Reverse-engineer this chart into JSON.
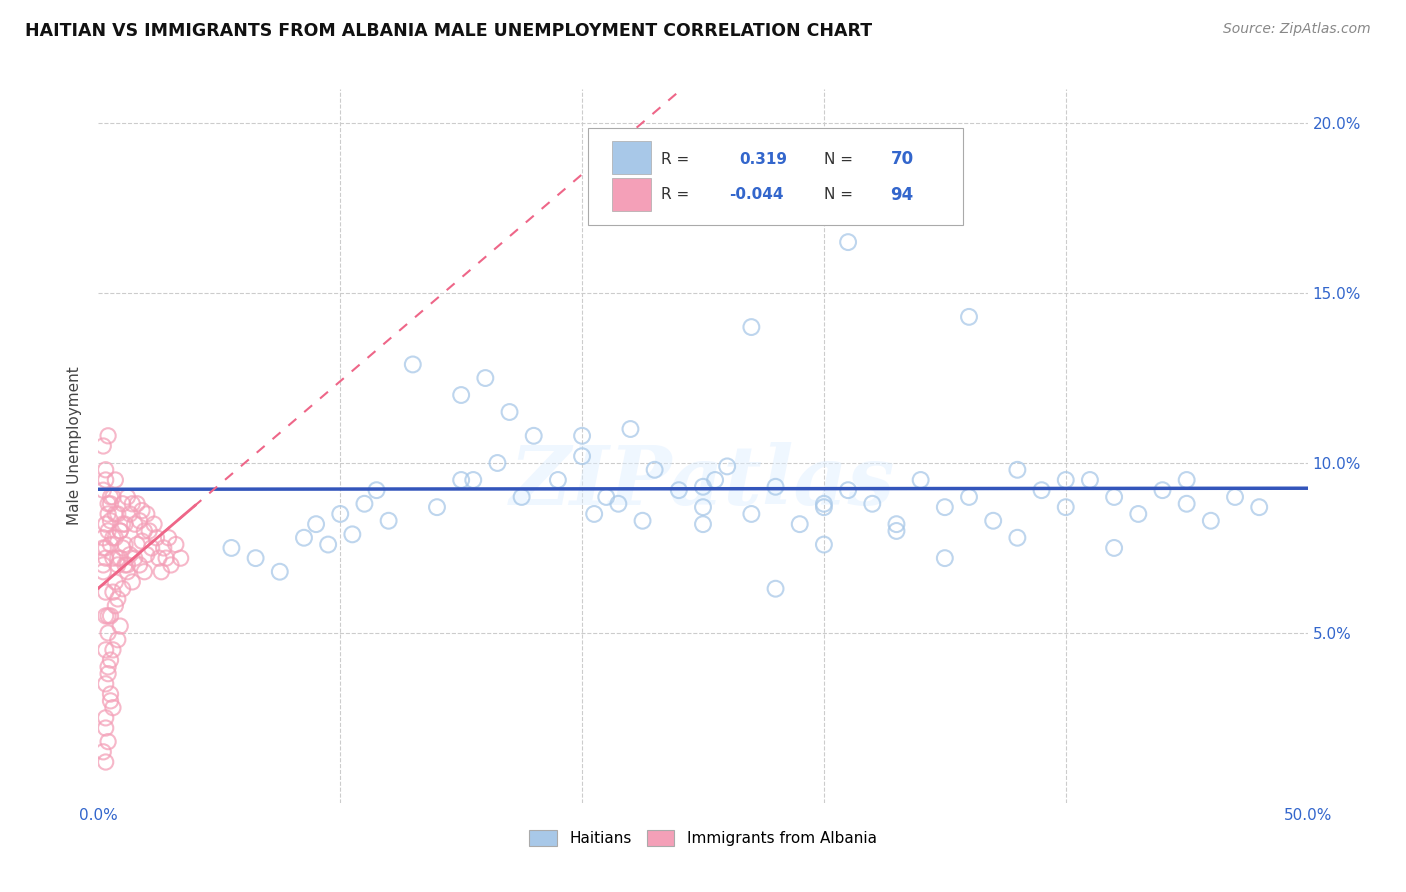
{
  "title": "HAITIAN VS IMMIGRANTS FROM ALBANIA MALE UNEMPLOYMENT CORRELATION CHART",
  "source": "Source: ZipAtlas.com",
  "ylabel": "Male Unemployment",
  "watermark": "ZIPatlas",
  "xlim": [
    0.0,
    0.5
  ],
  "ylim": [
    0.0,
    0.21
  ],
  "yticks": [
    0.05,
    0.1,
    0.15,
    0.2
  ],
  "yticklabels": [
    "5.0%",
    "10.0%",
    "15.0%",
    "20.0%"
  ],
  "xticks": [
    0.0,
    0.1,
    0.2,
    0.3,
    0.4,
    0.5
  ],
  "xticklabels": [
    "0.0%",
    "",
    "",
    "",
    "",
    "50.0%"
  ],
  "haitian_color": "#A8C8E8",
  "albania_color": "#F4A0B8",
  "haitian_edge": "#6699CC",
  "albania_edge": "#E07090",
  "haitian_line_color": "#3355BB",
  "albania_line_color": "#EE6688",
  "haitian_R": 0.319,
  "haitian_N": 70,
  "albania_R": -0.044,
  "albania_N": 94,
  "legend_label_haitian": "Haitians",
  "legend_label_albania": "Immigrants from Albania",
  "background_color": "#FFFFFF",
  "grid_color": "#CCCCCC",
  "haitian_x": [
    0.055,
    0.065,
    0.075,
    0.085,
    0.09,
    0.095,
    0.1,
    0.105,
    0.11,
    0.115,
    0.12,
    0.13,
    0.14,
    0.15,
    0.155,
    0.16,
    0.165,
    0.17,
    0.175,
    0.18,
    0.19,
    0.2,
    0.205,
    0.21,
    0.215,
    0.22,
    0.225,
    0.23,
    0.24,
    0.25,
    0.255,
    0.26,
    0.27,
    0.28,
    0.29,
    0.3,
    0.31,
    0.32,
    0.33,
    0.34,
    0.35,
    0.36,
    0.37,
    0.38,
    0.39,
    0.4,
    0.41,
    0.42,
    0.43,
    0.44,
    0.45,
    0.46,
    0.47,
    0.48,
    0.27,
    0.31,
    0.36,
    0.38,
    0.42,
    0.45,
    0.15,
    0.2,
    0.25,
    0.3,
    0.35,
    0.4,
    0.3,
    0.25,
    0.33,
    0.28
  ],
  "haitian_y": [
    0.075,
    0.072,
    0.068,
    0.078,
    0.082,
    0.076,
    0.085,
    0.079,
    0.088,
    0.092,
    0.083,
    0.129,
    0.087,
    0.12,
    0.095,
    0.125,
    0.1,
    0.115,
    0.09,
    0.108,
    0.095,
    0.102,
    0.085,
    0.09,
    0.088,
    0.11,
    0.083,
    0.098,
    0.092,
    0.087,
    0.095,
    0.099,
    0.085,
    0.093,
    0.082,
    0.087,
    0.092,
    0.088,
    0.08,
    0.095,
    0.087,
    0.09,
    0.083,
    0.078,
    0.092,
    0.087,
    0.095,
    0.09,
    0.085,
    0.092,
    0.088,
    0.083,
    0.09,
    0.087,
    0.14,
    0.165,
    0.143,
    0.098,
    0.075,
    0.095,
    0.095,
    0.108,
    0.082,
    0.076,
    0.072,
    0.095,
    0.088,
    0.093,
    0.082,
    0.063
  ],
  "albania_x": [
    0.002,
    0.003,
    0.003,
    0.004,
    0.004,
    0.005,
    0.005,
    0.005,
    0.006,
    0.006,
    0.007,
    0.007,
    0.007,
    0.008,
    0.008,
    0.008,
    0.009,
    0.009,
    0.01,
    0.01,
    0.01,
    0.011,
    0.011,
    0.012,
    0.012,
    0.013,
    0.013,
    0.014,
    0.014,
    0.015,
    0.015,
    0.016,
    0.016,
    0.017,
    0.017,
    0.018,
    0.018,
    0.019,
    0.019,
    0.02,
    0.02,
    0.021,
    0.022,
    0.023,
    0.024,
    0.025,
    0.026,
    0.027,
    0.028,
    0.029,
    0.03,
    0.032,
    0.034,
    0.002,
    0.003,
    0.004,
    0.005,
    0.006,
    0.007,
    0.008,
    0.009,
    0.01,
    0.011,
    0.012,
    0.003,
    0.004,
    0.005,
    0.006,
    0.007,
    0.008,
    0.009,
    0.002,
    0.003,
    0.004,
    0.005,
    0.006,
    0.003,
    0.004,
    0.005,
    0.006,
    0.002,
    0.003,
    0.004,
    0.002,
    0.003,
    0.003,
    0.004,
    0.005,
    0.002,
    0.003,
    0.004,
    0.003,
    0.002,
    0.003
  ],
  "albania_y": [
    0.078,
    0.082,
    0.075,
    0.085,
    0.08,
    0.088,
    0.083,
    0.076,
    0.09,
    0.072,
    0.095,
    0.078,
    0.065,
    0.085,
    0.07,
    0.06,
    0.08,
    0.072,
    0.088,
    0.075,
    0.063,
    0.082,
    0.07,
    0.09,
    0.068,
    0.085,
    0.073,
    0.088,
    0.065,
    0.082,
    0.072,
    0.088,
    0.076,
    0.083,
    0.07,
    0.086,
    0.077,
    0.08,
    0.068,
    0.085,
    0.073,
    0.08,
    0.075,
    0.082,
    0.078,
    0.072,
    0.068,
    0.075,
    0.072,
    0.078,
    0.07,
    0.076,
    0.072,
    0.092,
    0.095,
    0.088,
    0.09,
    0.078,
    0.085,
    0.072,
    0.08,
    0.082,
    0.076,
    0.07,
    0.098,
    0.055,
    0.055,
    0.062,
    0.058,
    0.048,
    0.052,
    0.105,
    0.055,
    0.108,
    0.042,
    0.045,
    0.072,
    0.038,
    0.032,
    0.028,
    0.068,
    0.022,
    0.018,
    0.075,
    0.025,
    0.035,
    0.04,
    0.03,
    0.07,
    0.062,
    0.05,
    0.045,
    0.015,
    0.012
  ]
}
